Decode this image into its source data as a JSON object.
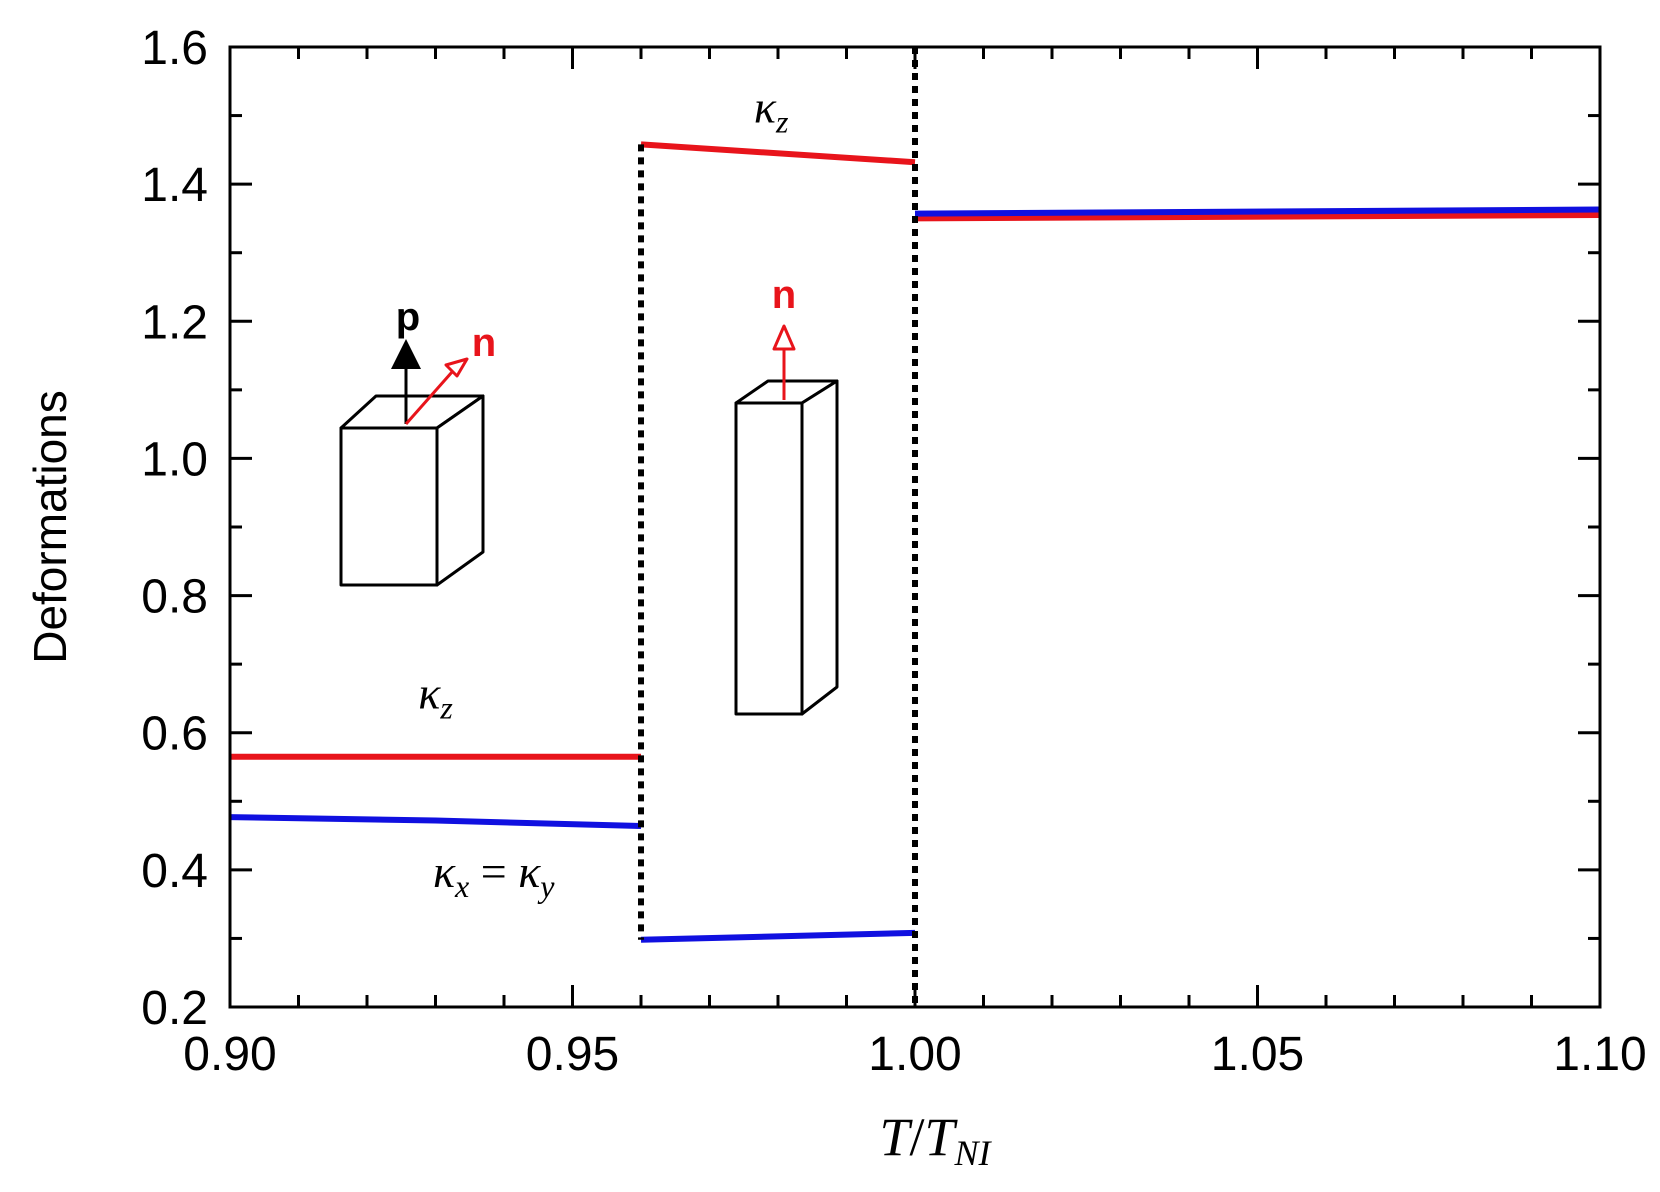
{
  "chart_data": {
    "type": "line",
    "title": "",
    "xlabel": "T/T_NI",
    "ylabel": "Deformations",
    "xlim": [
      0.9,
      1.1
    ],
    "ylim": [
      0.2,
      1.6
    ],
    "xticks": [
      "0.90",
      "0.95",
      "1.00",
      "1.05",
      "1.10"
    ],
    "yticks": [
      "0.2",
      "0.4",
      "0.6",
      "0.8",
      "1.0",
      "1.2",
      "1.4",
      "1.6"
    ],
    "colors": {
      "kappa_z": "#e8141b",
      "kappa_xy": "#1010e0",
      "transition": "#000000"
    },
    "series": [
      {
        "name": "kappa_z",
        "color": "#e8141b",
        "segments": [
          [
            [
              0.9,
              0.565
            ],
            [
              0.96,
              0.565
            ]
          ],
          [
            [
              0.96,
              1.458
            ],
            [
              1.0,
              1.432
            ]
          ],
          [
            [
              1.0,
              1.35
            ],
            [
              1.1,
              1.355
            ]
          ]
        ]
      },
      {
        "name": "kappa_xy",
        "color": "#1010e0",
        "segments": [
          [
            [
              0.9,
              0.477
            ],
            [
              0.93,
              0.472
            ],
            [
              0.96,
              0.464
            ]
          ],
          [
            [
              0.96,
              0.298
            ],
            [
              1.0,
              0.308
            ]
          ],
          [
            [
              1.0,
              1.357
            ],
            [
              1.1,
              1.363
            ]
          ]
        ]
      }
    ],
    "transitions": [
      {
        "x": 0.96,
        "y_range": [
          0.298,
          1.458
        ]
      },
      {
        "x": 1.0,
        "y_range": [
          0.2,
          1.6
        ]
      }
    ],
    "annotations": {
      "kz_upper": {
        "text": "κ",
        "sub": "z",
        "x": 0.979,
        "y": 1.49
      },
      "kz_lower": {
        "text": "κ",
        "sub": "z",
        "x": 0.93,
        "y": 0.635
      },
      "kxy_lower": {
        "text": "κ",
        "sub1": "x",
        "eq": " = ",
        "text2": "κ",
        "sub2": "y",
        "x": 0.9385,
        "y": 0.375
      },
      "vec_p": {
        "text": "p"
      },
      "vec_n_left": {
        "text": "n"
      },
      "vec_n_mid": {
        "text": "n"
      }
    },
    "xlabel_parts": {
      "main": "T",
      "slash": "/",
      "den": "T",
      "sub": "NI"
    }
  }
}
